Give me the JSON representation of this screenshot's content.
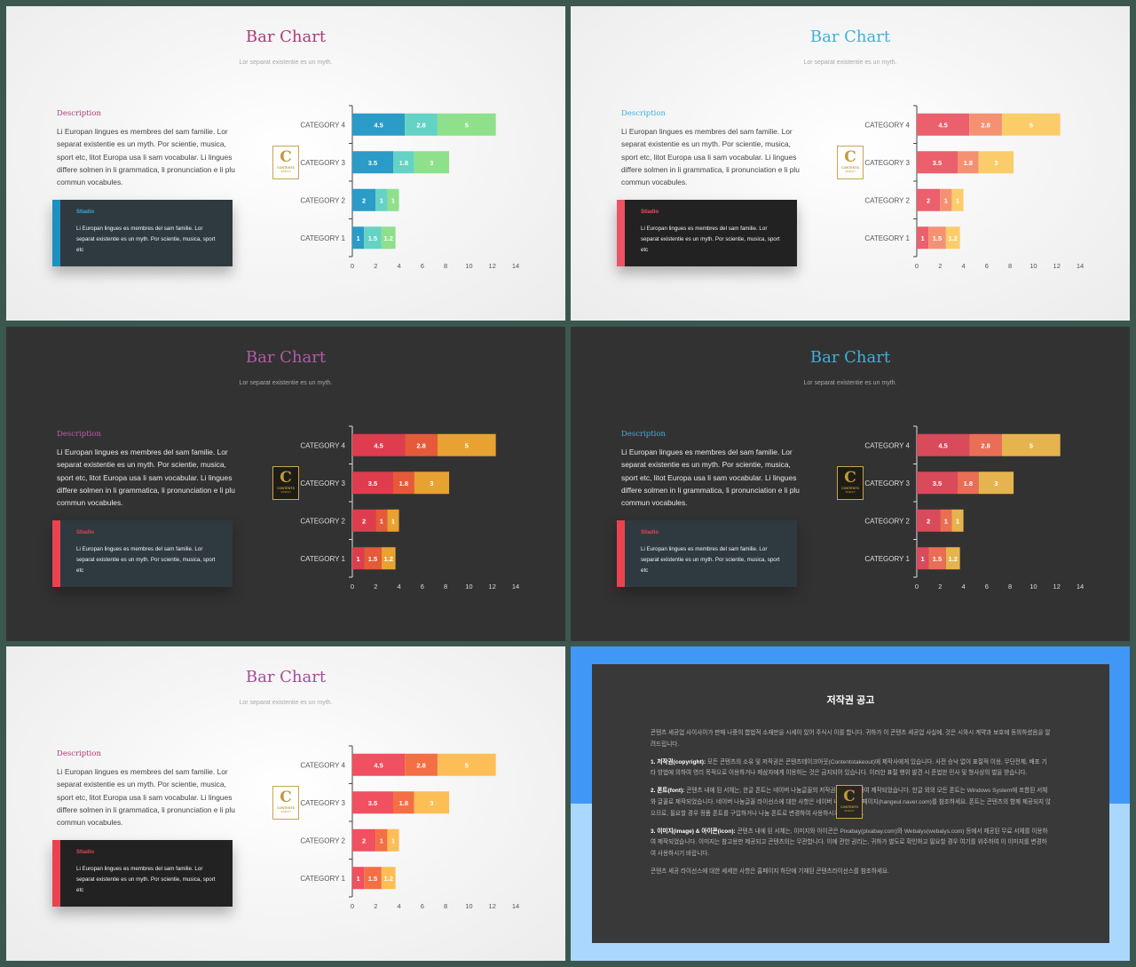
{
  "slides": [
    {
      "theme": "light",
      "title": "Bar Chart",
      "subtitle": "Lor separat existentie es un myth.",
      "description_heading": "Description",
      "description": "Li Europan lingues es membres del sam familie. Lor separat existentie es un myth. Por scientie, musica, sport etc, litot Europa usa li sam vocabular. Li lingues differe solmen in li grammatica, li pronunciation e li plu commun vocabules.",
      "box_heading": "Stiadio",
      "box_text": "Li Europan lingues es membres del sam familie. Lor separat existentie es un myth. Por scientie, musica, sport etc",
      "logo": {
        "letter": "C",
        "name": "CONTENTS",
        "tagline": "TAKEOUT"
      },
      "colors": {
        "title": "#b03a76",
        "heading": "#b03a76",
        "box_bg": "#2f3a40",
        "box_bar": "#1d8fc0",
        "box_heading": "#3aa7d9",
        "series": [
          "#2b9bc7",
          "#64d2c4",
          "#8fe08a"
        ]
      }
    },
    {
      "theme": "light",
      "title": "Bar Chart",
      "subtitle": "Lor separat existentie es un myth.",
      "description_heading": "Description",
      "description": "Li Europan lingues es membres del sam familie. Lor separat existentie es un myth. Por scientie, musica, sport etc, litot Europa usa li sam vocabular. Li lingues differe solmen in li grammatica, li pronunciation e li plu commun vocabules.",
      "box_heading": "Stiadio",
      "box_text": "Li Europan lingues es membres del sam familie. Lor separat existentie es un myth. Por scientie, musica, sport etc",
      "logo": {
        "letter": "C",
        "name": "CONTENTS",
        "tagline": "TAKEOUT"
      },
      "colors": {
        "title": "#3ab3dc",
        "heading": "#3ab3dc",
        "box_bg": "#222222",
        "box_bar": "#ec5364",
        "box_heading": "#ec5364",
        "series": [
          "#ec5f6c",
          "#f59173",
          "#fbcd6a"
        ]
      }
    },
    {
      "theme": "dark",
      "title": "Bar Chart",
      "subtitle": "Lor separat existentie es un myth.",
      "description_heading": "Description",
      "description": "Li Europan lingues es membres del sam familie. Lor separat existentie es un myth. Por scientie, musica, sport etc, litot Europa usa li sam vocabular. Li lingues differe solmen in li grammatica, li pronunciation e li plu commun vocabules.",
      "box_heading": "Stiadio",
      "box_text": "Li Europan lingues es membres del sam familie. Lor separat existentie es un myth. Por scientie, musica, sport etc",
      "logo": {
        "letter": "C",
        "name": "CONTENTS",
        "tagline": "TAKEOUT"
      },
      "colors": {
        "title": "#b25aa8",
        "heading": "#c25aa8",
        "box_bg": "#2e3a40",
        "box_bar": "#e8434f",
        "box_heading": "#e8434f",
        "series": [
          "#df3d4e",
          "#e55a38",
          "#e7a231"
        ]
      }
    },
    {
      "theme": "dark",
      "title": "Bar Chart",
      "subtitle": "Lor separat existentie es un myth.",
      "description_heading": "Description",
      "description": "Li Europan lingues es membres del sam familie. Lor separat existentie es un myth. Por scientie, musica, sport etc, litot Europa usa li sam vocabular. Li lingues differe solmen in li grammatica, li pronunciation e li plu commun vocabules.",
      "box_heading": "Stiadio",
      "box_text": "Li Europan lingues es membres del sam familie. Lor separat existentie es un myth. Por scientie, musica, sport etc",
      "logo": {
        "letter": "C",
        "name": "CONTENTS",
        "tagline": "TAKEOUT"
      },
      "colors": {
        "title": "#3ab3dc",
        "heading": "#3ab3dc",
        "box_bg": "#2e3a40",
        "box_bar": "#e8434f",
        "box_heading": "#e8434f",
        "series": [
          "#d94a5b",
          "#e96e55",
          "#e6b44e"
        ]
      }
    },
    {
      "theme": "light",
      "title": "Bar Chart",
      "subtitle": "Lor separat existentie es un myth.",
      "description_heading": "Description",
      "description": "Li Europan lingues es membres del sam familie. Lor separat existentie es un myth. Por scientie, musica, sport etc, litot Europa usa li sam vocabular. Li lingues differe solmen in li grammatica, li pronunciation e li plu commun vocabules.",
      "box_heading": "Stiadio",
      "box_text": "Li Europan lingues es membres del sam familie. Lor separat existentie es un myth. Por scientie, musica, sport etc",
      "logo": {
        "letter": "C",
        "name": "CONTENTS",
        "tagline": "TAKEOUT"
      },
      "colors": {
        "title": "#a84b9c",
        "heading": "#b03a76",
        "box_bg": "#222222",
        "box_bar": "#e8434f",
        "box_heading": "#e8434f",
        "series": [
          "#f0505f",
          "#f36f44",
          "#fdbe55"
        ]
      }
    }
  ],
  "chart_data": [
    {
      "type": "bar",
      "orientation": "horizontal",
      "stacked": true,
      "categories": [
        "CATEGORY 4",
        "CATEGORY 3",
        "CATEGORY 2",
        "CATEGORY 1"
      ],
      "series": [
        {
          "values": [
            4.5,
            3.5,
            2,
            1
          ]
        },
        {
          "values": [
            2.8,
            1.8,
            1,
            1.5
          ]
        },
        {
          "values": [
            5,
            3,
            1,
            1.2
          ]
        }
      ],
      "xlim": [
        0,
        14
      ],
      "xticks": [
        "0",
        "2",
        "4",
        "6",
        "8",
        "10",
        "12",
        "14"
      ],
      "data_labels": true,
      "grid": false,
      "legend": "none"
    },
    {
      "type": "bar",
      "orientation": "horizontal",
      "stacked": true,
      "categories": [
        "CATEGORY 4",
        "CATEGORY 3",
        "CATEGORY 2",
        "CATEGORY 1"
      ],
      "series": [
        {
          "values": [
            4.5,
            3.5,
            2,
            1
          ]
        },
        {
          "values": [
            2.8,
            1.8,
            1,
            1.5
          ]
        },
        {
          "values": [
            5,
            3,
            1,
            1.2
          ]
        }
      ],
      "xlim": [
        0,
        14
      ],
      "xticks": [
        "0",
        "2",
        "4",
        "6",
        "8",
        "10",
        "12",
        "14"
      ],
      "data_labels": true,
      "grid": false,
      "legend": "none"
    },
    {
      "type": "bar",
      "orientation": "horizontal",
      "stacked": true,
      "categories": [
        "CATEGORY 4",
        "CATEGORY 3",
        "CATEGORY 2",
        "CATEGORY 1"
      ],
      "series": [
        {
          "values": [
            4.5,
            3.5,
            2,
            1
          ]
        },
        {
          "values": [
            2.8,
            1.8,
            1,
            1.5
          ]
        },
        {
          "values": [
            5,
            3,
            1,
            1.2
          ]
        }
      ],
      "xlim": [
        0,
        14
      ],
      "xticks": [
        "0",
        "2",
        "4",
        "6",
        "8",
        "10",
        "12",
        "14"
      ],
      "data_labels": true,
      "grid": false,
      "legend": "none"
    },
    {
      "type": "bar",
      "orientation": "horizontal",
      "stacked": true,
      "categories": [
        "CATEGORY 4",
        "CATEGORY 3",
        "CATEGORY 2",
        "CATEGORY 1"
      ],
      "series": [
        {
          "values": [
            4.5,
            3.5,
            2,
            1
          ]
        },
        {
          "values": [
            2.8,
            1.8,
            1,
            1.5
          ]
        },
        {
          "values": [
            5,
            3,
            1,
            1.2
          ]
        }
      ],
      "xlim": [
        0,
        14
      ],
      "xticks": [
        "0",
        "2",
        "4",
        "6",
        "8",
        "10",
        "12",
        "14"
      ],
      "data_labels": true,
      "grid": false,
      "legend": "none"
    },
    {
      "type": "bar",
      "orientation": "horizontal",
      "stacked": true,
      "categories": [
        "CATEGORY 4",
        "CATEGORY 3",
        "CATEGORY 2",
        "CATEGORY 1"
      ],
      "series": [
        {
          "values": [
            4.5,
            3.5,
            2,
            1
          ]
        },
        {
          "values": [
            2.8,
            1.8,
            1,
            1.5
          ]
        },
        {
          "values": [
            5,
            3,
            1,
            1.2
          ]
        }
      ],
      "xlim": [
        0,
        14
      ],
      "xticks": [
        "0",
        "2",
        "4",
        "6",
        "8",
        "10",
        "12",
        "14"
      ],
      "data_labels": true,
      "grid": false,
      "legend": "none"
    }
  ],
  "notice": {
    "title": "저작권 공고",
    "intro": "콘텐츠 세공업 사이사이가 판매 나중의 합법적 소재만을 시세이 있어 주식시 이를 합니다. 귀하가 이 콘텐츠 세공업 사실에, 것은 시와시 계약과 보호에 동의하셨음을 알려드립니다.",
    "sections": [
      {
        "heading": "1. 저작권(copyright):",
        "text": "모든 콘텐츠의 소유 및 저작권은 콘텐츠테이크아웃(Contentstakeout)에 제작사에게 있습니다. 사전 승낙 없이 표절적 이용, 무단전제, 배포 기타 방법에 의하여 영리 목적으로 이용하거나 제삼자에게 이용하는 것은 금지되어 있습니다. 이러한 표절 행위 발견 시 준법한 민사 및 형사상의 벌을 받습니다."
      },
      {
        "heading": "2. 폰트(font):",
        "text": "콘텐츠 내에 된 서체는, 한글 폰트는 네이버 나눔글꼴의 저작권으로 이용하여 제작되었습니다. 한글 외의 모든 폰트는 Windows System에 포함된 서체와 글꼴로 제작되었습니다. 네이버 나눔글꼴 라이선스에 대한 사항은 네이버 나눔글꼴 홈페이지(hangeul.naver.com)를 참조하세요. 폰트는 콘텐츠의 함께 제공되지 않으므로, 필요할 경우 정품 폰트를 구입하거나 나눔 폰트로 변경하여 사용하시기 바랍니다."
      },
      {
        "heading": "3. 이미지(image) & 아이콘(icon):",
        "text": "콘텐츠 내에 된 서체는, 이미지와 아이콘은 Pixabay(pixabay.com)와 Webalys(webalys.com) 등에서 제공된 무료 서체를 이용하여 제작되었습니다. 이미지는 참고용만 제공되고 콘텐츠의는 무관합니다. 이에 관한 권리는, 귀하가 별도로 확인하고 필요할 경우 여기를 위주하여 이 이미지를 변경하여 사용하시기 바랍니다."
      }
    ],
    "footer": "콘텐츠 세공 라이선스에 대한 세세한 사항은 홈페이지 하단에 기재된 콘텐츠라이선스를 참조하세요.",
    "logo": {
      "letter": "C",
      "name": "CONTENTS",
      "tagline": "TAKEOUT"
    }
  }
}
